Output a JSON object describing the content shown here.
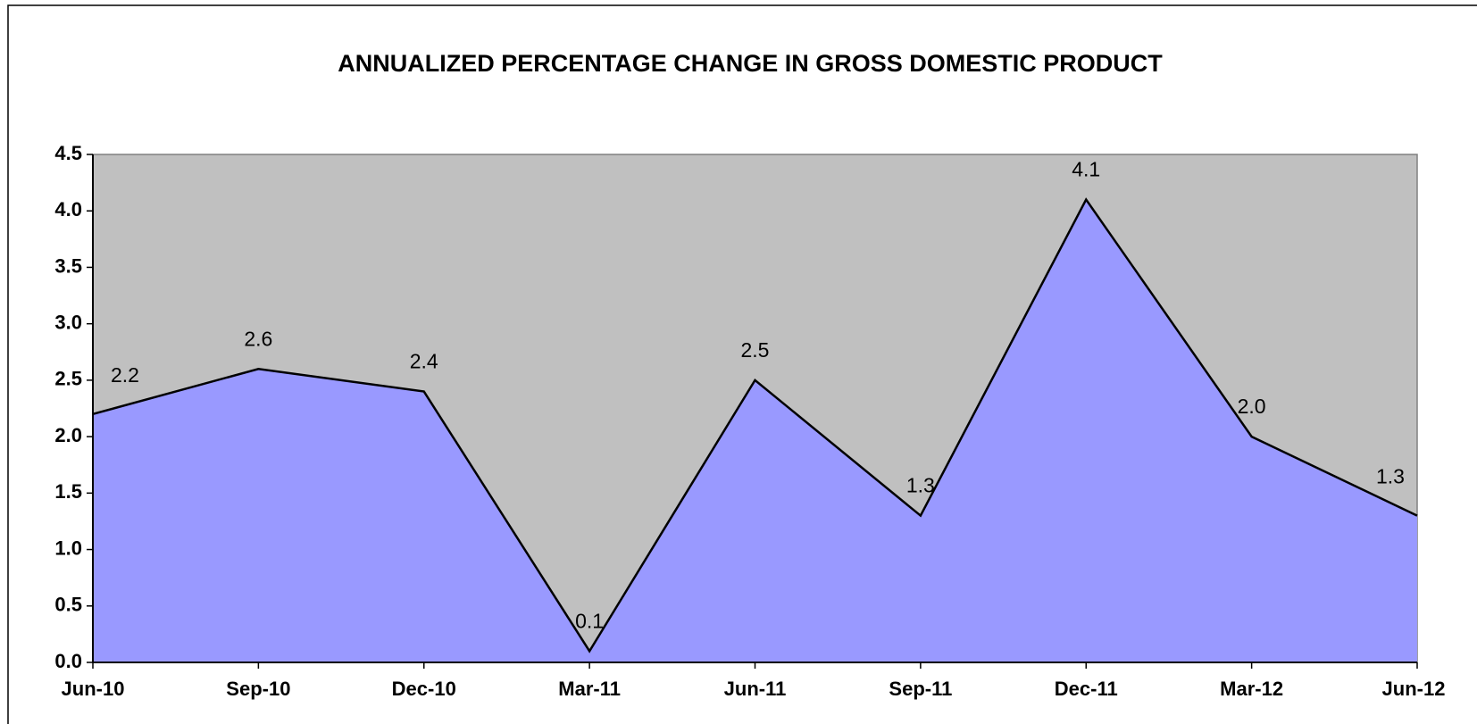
{
  "chart_data": {
    "type": "area",
    "title": "ANNUALIZED  PERCENTAGE CHANGE IN GROSS DOMESTIC PRODUCT",
    "categories": [
      "Jun-10",
      "Sep-10",
      "Dec-10",
      "Mar-11",
      "Jun-11",
      "Sep-11",
      "Dec-11",
      "Mar-12",
      "Jun-12"
    ],
    "values": [
      2.2,
      2.6,
      2.4,
      0.1,
      2.5,
      1.3,
      4.1,
      2.0,
      1.3
    ],
    "value_labels": [
      "2.2",
      "2.6",
      "2.4",
      "0.1",
      "2.5",
      "1.3",
      "4.1",
      "2.0",
      "1.3"
    ],
    "color": "#9999ff",
    "background": "#c0c0c0",
    "ylim": [
      0,
      4.5
    ],
    "yticks": [
      {
        "value": 0,
        "label": "0.0"
      },
      0.5,
      {
        "value": 1,
        "label": "1.0"
      },
      1.5,
      {
        "value": 2,
        "label": "2.0"
      },
      2.5,
      {
        "value": 3,
        "label": "3.0"
      },
      3.5,
      {
        "value": 4,
        "label": "4.0"
      },
      4.5
    ]
  }
}
